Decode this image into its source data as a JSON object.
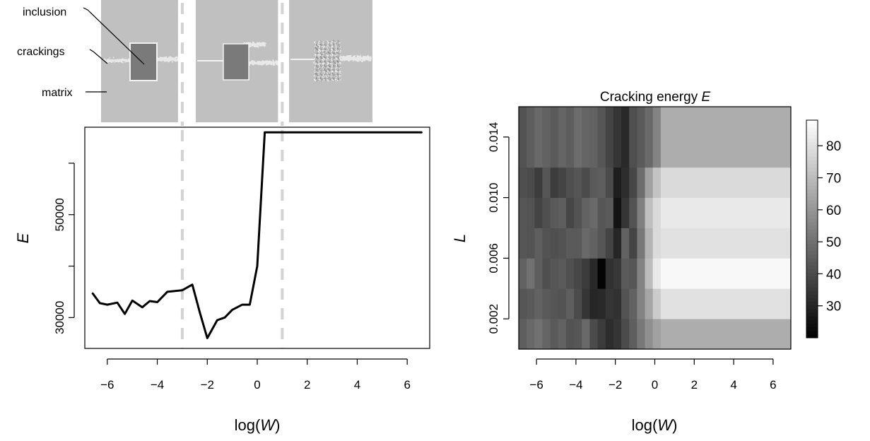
{
  "figure": {
    "annotations": {
      "inclusion": "inclusion",
      "crackings": "crackings",
      "matrix": "matrix"
    }
  },
  "chart_data": [
    {
      "type": "line",
      "xlabel": "log(W)",
      "ylabel": "E",
      "xlim": [
        -6.9,
        6.9
      ],
      "ylim": [
        24000,
        67000
      ],
      "x_ticks": [
        -6,
        -4,
        -2,
        0,
        2,
        4,
        6
      ],
      "y_ticks": [
        30000,
        50000
      ],
      "y_tick_labels": [
        "30000",
        "50000"
      ],
      "grid": false,
      "box": true,
      "reference_lines_x": [
        -3,
        1
      ],
      "reference_line_color": "#d3d3d3",
      "line_color": "#000000",
      "x": [
        -6.6,
        -6.3,
        -6.0,
        -5.6,
        -5.3,
        -5.0,
        -4.6,
        -4.3,
        -4.0,
        -3.6,
        -3.0,
        -2.6,
        -2.3,
        -2.0,
        -1.6,
        -1.3,
        -1.0,
        -0.6,
        -0.3,
        0.0,
        0.3,
        0.6,
        1.0,
        1.3,
        1.6,
        2.0,
        2.6,
        3.0,
        3.6,
        4.0,
        4.6,
        5.0,
        5.6,
        6.0,
        6.6
      ],
      "y": [
        34800,
        32800,
        32500,
        32900,
        30700,
        33300,
        32000,
        33200,
        33000,
        35000,
        35300,
        36400,
        31000,
        26000,
        29500,
        30000,
        31500,
        32500,
        32500,
        40000,
        66000,
        66000,
        66000,
        66000,
        66000,
        66000,
        66000,
        66000,
        66000,
        66000,
        66000,
        66000,
        66000,
        66000,
        66000
      ]
    },
    {
      "type": "heatmap",
      "title": "Cracking energy E",
      "xlabel": "log(W)",
      "ylabel": "L",
      "xlim": [
        -6.9,
        6.9
      ],
      "ylim": [
        0.0,
        0.016
      ],
      "x_ticks": [
        -6,
        -4,
        -2,
        0,
        2,
        4,
        6
      ],
      "y_ticks": [
        0.002,
        0.006,
        0.01,
        0.014
      ],
      "y_tick_labels": [
        "0.002",
        "0.006",
        "0.010",
        "0.014"
      ],
      "x_edges": [
        -6.9,
        -6.5,
        -6.1,
        -5.7,
        -5.3,
        -4.9,
        -4.5,
        -4.1,
        -3.7,
        -3.3,
        -2.9,
        -2.5,
        -2.1,
        -1.7,
        -1.3,
        -0.9,
        -0.5,
        -0.1,
        0.3,
        6.9
      ],
      "y_edges": [
        0.0,
        0.002,
        0.004,
        0.006,
        0.008,
        0.01,
        0.012,
        0.016
      ],
      "z": [
        [
          45,
          48,
          50,
          47,
          44,
          46,
          42,
          43,
          48,
          40,
          36,
          32,
          34,
          40,
          45,
          52,
          58,
          63,
          66
        ],
        [
          43,
          44,
          46,
          44,
          43,
          42,
          45,
          40,
          34,
          30,
          31,
          34,
          33,
          42,
          46,
          55,
          64,
          74,
          80
        ],
        [
          46,
          50,
          45,
          41,
          43,
          44,
          41,
          39,
          36,
          31,
          21,
          33,
          35,
          44,
          43,
          55,
          70,
          82,
          86
        ],
        [
          43,
          42,
          45,
          42,
          41,
          42,
          44,
          44,
          48,
          46,
          43,
          38,
          30,
          46,
          38,
          52,
          68,
          78,
          80
        ],
        [
          43,
          42,
          38,
          41,
          44,
          45,
          39,
          42,
          46,
          48,
          43,
          44,
          25,
          34,
          42,
          54,
          71,
          78,
          82
        ],
        [
          41,
          40,
          36,
          43,
          36,
          38,
          41,
          43,
          40,
          44,
          45,
          40,
          28,
          32,
          39,
          49,
          63,
          72,
          78
        ],
        [
          42,
          45,
          48,
          46,
          44,
          47,
          45,
          49,
          47,
          46,
          43,
          38,
          34,
          31,
          41,
          44,
          48,
          55,
          66
        ]
      ],
      "colorbar": {
        "ticks": [
          30,
          40,
          50,
          60,
          70,
          80
        ],
        "range": [
          20,
          88
        ]
      }
    }
  ]
}
